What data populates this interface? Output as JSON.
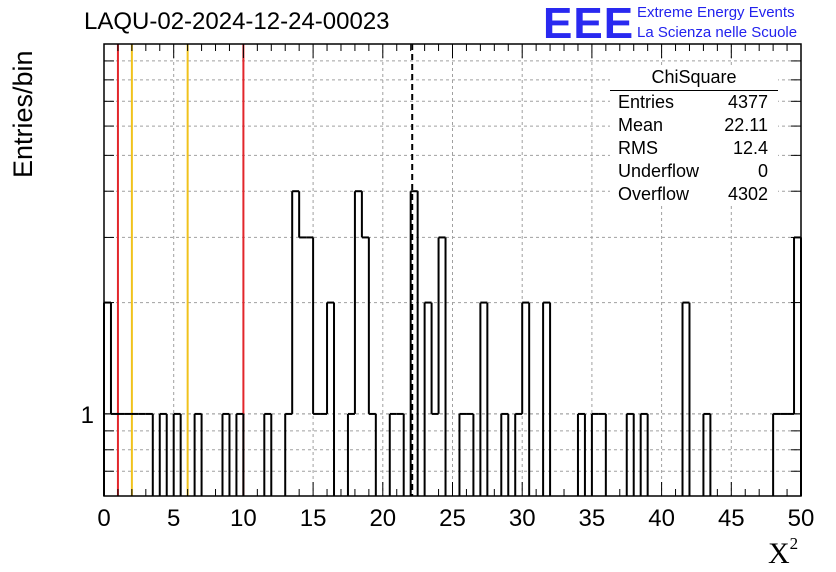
{
  "chart_data": {
    "type": "histogram",
    "title": "LAQU-02-2024-12-24-00023",
    "xlabel": "X",
    "xlabel_sup": "2",
    "ylabel": "Entries/bin",
    "xlim": [
      0,
      50
    ],
    "ylim": [
      0.6,
      10
    ],
    "y_scale": "log",
    "grid": true,
    "bin_width": 0.5,
    "x_ticks": [
      0,
      5,
      10,
      15,
      20,
      25,
      30,
      35,
      40,
      45,
      50
    ],
    "y_tick_labels": [
      {
        "value": 1,
        "label": "1"
      }
    ],
    "bins": [
      {
        "x": 0.0,
        "count": 2
      },
      {
        "x": 0.5,
        "count": 1
      },
      {
        "x": 1.0,
        "count": 1
      },
      {
        "x": 1.5,
        "count": 1
      },
      {
        "x": 2.0,
        "count": 1
      },
      {
        "x": 2.5,
        "count": 1
      },
      {
        "x": 3.0,
        "count": 1
      },
      {
        "x": 4.0,
        "count": 1
      },
      {
        "x": 5.0,
        "count": 1
      },
      {
        "x": 6.5,
        "count": 1
      },
      {
        "x": 8.5,
        "count": 1
      },
      {
        "x": 9.5,
        "count": 1
      },
      {
        "x": 11.5,
        "count": 1
      },
      {
        "x": 13.0,
        "count": 1
      },
      {
        "x": 13.5,
        "count": 4
      },
      {
        "x": 14.0,
        "count": 3
      },
      {
        "x": 14.5,
        "count": 3
      },
      {
        "x": 15.0,
        "count": 1
      },
      {
        "x": 15.5,
        "count": 1
      },
      {
        "x": 16.0,
        "count": 2
      },
      {
        "x": 17.5,
        "count": 1
      },
      {
        "x": 18.0,
        "count": 4
      },
      {
        "x": 18.5,
        "count": 3
      },
      {
        "x": 19.0,
        "count": 1
      },
      {
        "x": 20.5,
        "count": 1
      },
      {
        "x": 21.0,
        "count": 1
      },
      {
        "x": 22.0,
        "count": 4
      },
      {
        "x": 23.0,
        "count": 2
      },
      {
        "x": 23.5,
        "count": 1
      },
      {
        "x": 24.0,
        "count": 3
      },
      {
        "x": 25.5,
        "count": 1
      },
      {
        "x": 26.0,
        "count": 1
      },
      {
        "x": 27.0,
        "count": 2
      },
      {
        "x": 28.5,
        "count": 1
      },
      {
        "x": 29.5,
        "count": 1
      },
      {
        "x": 30.0,
        "count": 2
      },
      {
        "x": 31.5,
        "count": 2
      },
      {
        "x": 34.0,
        "count": 1
      },
      {
        "x": 35.0,
        "count": 1
      },
      {
        "x": 35.5,
        "count": 1
      },
      {
        "x": 37.5,
        "count": 1
      },
      {
        "x": 38.5,
        "count": 1
      },
      {
        "x": 41.5,
        "count": 2
      },
      {
        "x": 43.0,
        "count": 1
      },
      {
        "x": 48.0,
        "count": 1
      },
      {
        "x": 48.5,
        "count": 1
      },
      {
        "x": 49.0,
        "count": 1
      },
      {
        "x": 49.5,
        "count": 3
      }
    ],
    "vertical_lines": [
      {
        "x": 1.0,
        "color": "#e2262b",
        "style": "solid"
      },
      {
        "x": 2.0,
        "color": "#f0c21c",
        "style": "solid"
      },
      {
        "x": 6.0,
        "color": "#f0c21c",
        "style": "solid"
      },
      {
        "x": 10.0,
        "color": "#e2262b",
        "style": "solid"
      },
      {
        "x": 22.11,
        "color": "#000000",
        "style": "dashed"
      }
    ]
  },
  "stats_box": {
    "title": "ChiSquare",
    "rows": [
      {
        "label": "Entries",
        "value": "4377"
      },
      {
        "label": "Mean",
        "value": "22.11"
      },
      {
        "label": "RMS",
        "value": "12.4"
      },
      {
        "label": "Underflow",
        "value": "0"
      },
      {
        "label": "Overflow",
        "value": "4302"
      }
    ]
  },
  "logo": {
    "mark": "EEE",
    "line1": "Extreme Energy Events",
    "line2": "La Scienza nelle Scuole",
    "color": "#2929f0"
  }
}
